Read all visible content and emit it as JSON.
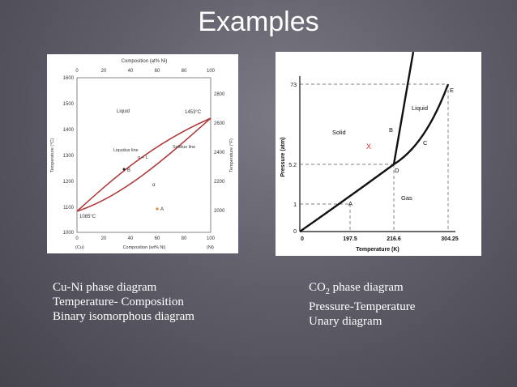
{
  "slide": {
    "title": "Examples"
  },
  "cuni": {
    "top_axis_label": "Composition (at% Ni)",
    "top_ticks": [
      "0",
      "20",
      "40",
      "60",
      "80",
      "100"
    ],
    "bottom_ticks": [
      "0",
      "20",
      "40",
      "60",
      "80",
      "100"
    ],
    "bottom_axis_label": "Composition (wt% Ni)",
    "left_end_label": "(Cu)",
    "right_end_label": "(Ni)",
    "left_axis_label": "Temperature (°C)",
    "right_axis_label": "Temperature (°F)",
    "left_ticks": [
      "1600",
      "1500",
      "1400",
      "1300",
      "1200",
      "1100",
      "1000"
    ],
    "right_ticks": [
      "2800",
      "2600",
      "2400",
      "2200",
      "2000"
    ],
    "labels": {
      "liquid": "Liquid",
      "liquidus": "Liquidus line",
      "solidus": "Solidus line",
      "ni_melt": "1453°C",
      "cu_melt": "1085°C",
      "alpha_l": "α + L",
      "point_b": "B",
      "point_a": "A",
      "alpha": "α"
    },
    "colors": {
      "curve": "#b03a3a",
      "point_a": "#e08a2a"
    }
  },
  "co2": {
    "x_axis_label": "Temperature (K)",
    "y_axis_label": "Pressure (atm)",
    "x_ticks": [
      "0",
      "197.5",
      "216.6",
      "304.25"
    ],
    "y_ticks": [
      "73",
      "5.2",
      "1",
      "0"
    ],
    "labels": {
      "solid": "Solid",
      "liquid": "Liquid",
      "gas": "Gas",
      "a": "A",
      "b": "B",
      "c": "C",
      "d": "D",
      "e": "E",
      "x_mark": "X"
    },
    "colors": {
      "x_mark": "#d03030"
    }
  },
  "captions": {
    "left": [
      "Cu-Ni phase diagram",
      "Temperature- Composition",
      "Binary isomorphous diagram"
    ],
    "right_line1_prefix": "CO",
    "right_line1_sub": "2",
    "right_line1_suffix": " phase diagram",
    "right_line2": "Pressure-Temperature",
    "right_line3": "Unary diagram"
  }
}
